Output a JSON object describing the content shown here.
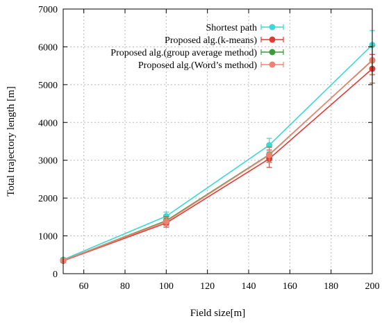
{
  "chart_data": {
    "type": "line",
    "xlabel": "Field size[m]",
    "ylabel": "Total trajectory length [m]",
    "xlim": [
      50,
      200
    ],
    "ylim": [
      0,
      7000
    ],
    "xticks": [
      60,
      80,
      100,
      120,
      140,
      160,
      180,
      200
    ],
    "yticks": [
      0,
      1000,
      2000,
      3000,
      4000,
      5000,
      6000,
      7000
    ],
    "grid": true,
    "legend_position": "top-right",
    "x": [
      50,
      100,
      150,
      200
    ],
    "series": [
      {
        "name": "Shortest path",
        "color": "#3fd6d6",
        "values": [
          370,
          1520,
          3400,
          6050
        ],
        "errors": [
          40,
          110,
          180,
          380
        ]
      },
      {
        "name": "Proposed alg.(k-means)",
        "color": "#e03a34",
        "values": [
          340,
          1340,
          3040,
          5420
        ],
        "errors": [
          40,
          110,
          230,
          380
        ]
      },
      {
        "name": "Proposed alg.(group average method)",
        "color": "#3c9a3c",
        "values": [
          350,
          1400,
          3150,
          5640
        ],
        "errors": [
          40,
          110,
          200,
          380
        ]
      },
      {
        "name": "Proposed alg.(Word’s method)",
        "color": "#f08070",
        "values": [
          350,
          1380,
          3140,
          5650
        ],
        "errors": [
          40,
          110,
          200,
          380
        ]
      }
    ]
  }
}
